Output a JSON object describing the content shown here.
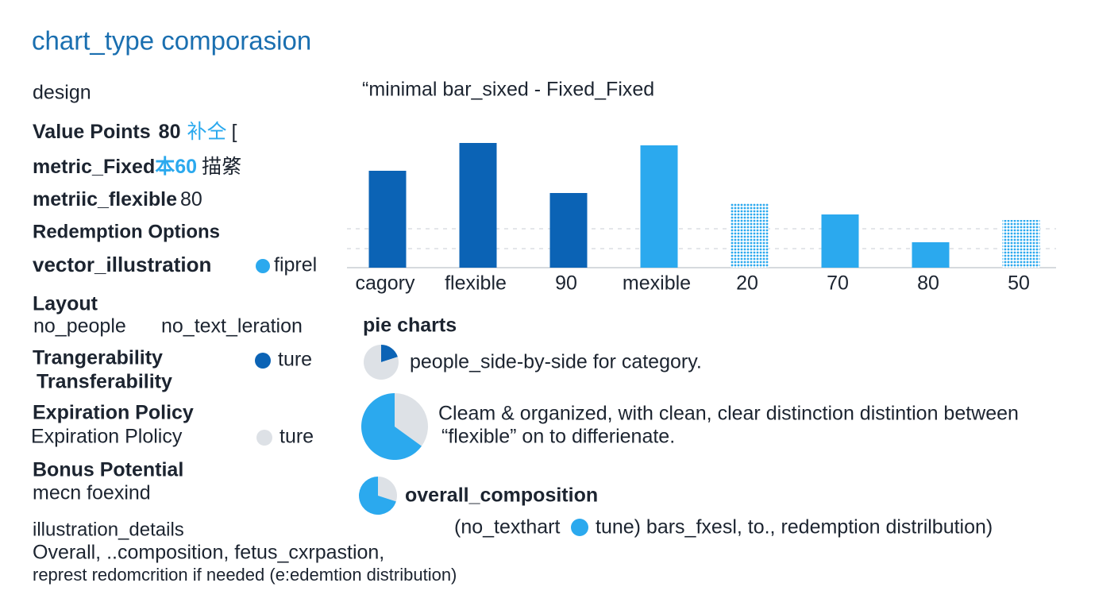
{
  "title": "chart_type comporasion",
  "sidebar": {
    "design": "design",
    "value_points": {
      "label": "Value Points",
      "value": "80",
      "note": "补仝",
      "extra": "["
    },
    "metric_fixed": {
      "label": "metric_Fixed",
      "value": "本60",
      "extra": "描綮"
    },
    "metric_flexible": {
      "label": "metriic_flexible",
      "value": "80"
    },
    "redemption_options": "Redemption Options",
    "vector_illustration": {
      "label": "vector_illustration",
      "value": "fiprel"
    },
    "layout": {
      "label": "Layout",
      "left": "no_people",
      "right": "no_text_leration"
    },
    "transferability": {
      "label": "Trangerability",
      "value": "ture",
      "sub": "Transferability"
    },
    "expiration": {
      "label": "Expiration Policy",
      "sub": "Expiration Plolicy",
      "value": "ture"
    },
    "bonus": {
      "label": "Bonus Potential",
      "sub": "mecn foexind"
    },
    "illustration_details": {
      "label": "illustration_details",
      "line1": "Overall, ..composition,  fetus_cxrpastion,",
      "line2": "represt redomcrition if needed (e:edemtion distribution)"
    }
  },
  "pie_section": {
    "title": "pie charts",
    "item1": "people_side-by-side for category.",
    "item2_line1": "Cleam & organized, with clean, clear distinction distintion between",
    "item2_line2": "“flexible” on to differienate.",
    "item3": "overall_composition",
    "footer_left": "(no_texthart",
    "footer_right": "tune) bars_fxesl, to., redemption distrilbution)"
  },
  "chart_data": [
    {
      "type": "bar",
      "title": "“minimal bar_sixed - Fixed_Fixed",
      "categories": [
        "cagory",
        "flexible",
        "90",
        "mexible",
        "20",
        "70",
        "80",
        "50"
      ],
      "values": [
        122,
        157,
        94,
        154,
        81,
        67,
        32,
        60
      ],
      "colors": [
        "#0b63b5",
        "#0b63b5",
        "#0b63b5",
        "#2ba9ee",
        "#2ba9ee",
        "#2ba9ee",
        "#2ba9ee",
        "#2ba9ee"
      ],
      "styles": [
        "solid",
        "solid",
        "solid",
        "solid",
        "dotted",
        "solid",
        "solid",
        "dotted"
      ],
      "ylim": [
        0,
        200
      ]
    },
    {
      "type": "pie",
      "values": [
        20,
        80
      ],
      "colors": [
        "#0b63b5",
        "#dde1e6"
      ]
    },
    {
      "type": "pie",
      "values": [
        35,
        65
      ],
      "colors": [
        "#dde1e6",
        "#2ba9ee"
      ]
    },
    {
      "type": "pie",
      "values": [
        30,
        70
      ],
      "colors": [
        "#dde1e6",
        "#2ba9ee"
      ]
    }
  ]
}
